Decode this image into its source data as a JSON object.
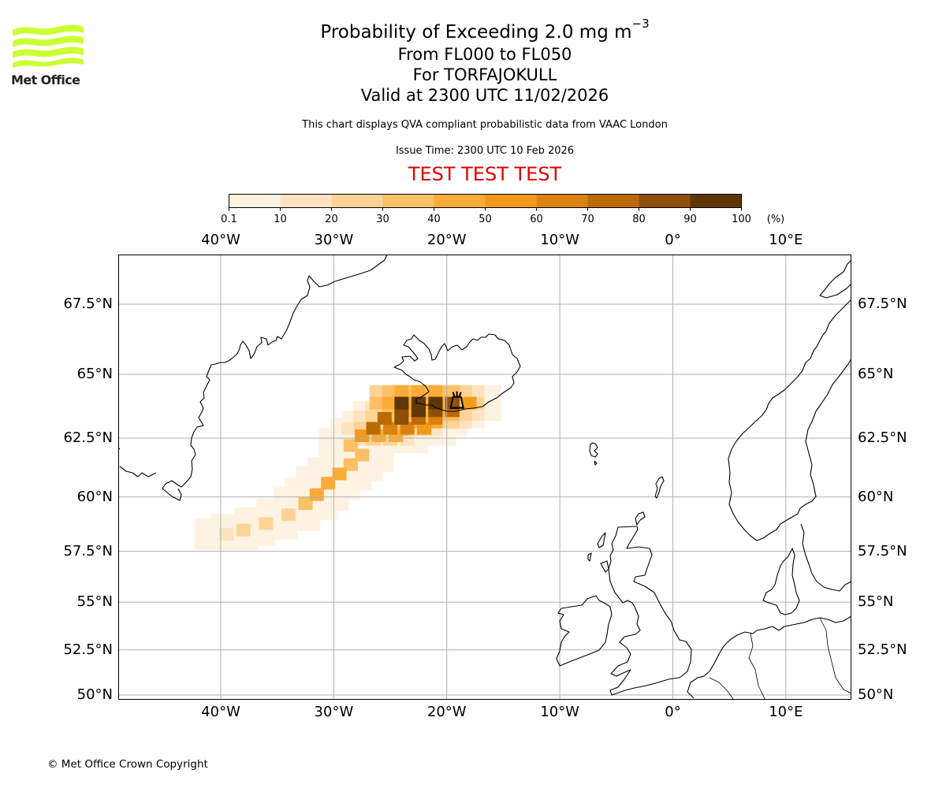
{
  "logo": {
    "name": "Met Office",
    "icon": "met-office-wave-logo-icon",
    "color": "#ccff33"
  },
  "title": {
    "main": "Probability of Exceeding 2.0 mg m",
    "main_exponent": "−3",
    "flight_levels": "From FL000 to FL050",
    "volcano": "For TORFAJOKULL",
    "valid": "Valid at 2300 UTC 11/02/2026",
    "note": "This chart displays QVA compliant probabilistic data from VAAC London",
    "issue_time": "Issue Time: 2300 UTC 10 Feb 2026",
    "test_banner": "TEST TEST TEST",
    "test_color": "#e00000"
  },
  "colorbar": {
    "unit": "(%)",
    "ticks": [
      "0.1",
      "10",
      "20",
      "30",
      "40",
      "50",
      "60",
      "70",
      "80",
      "90",
      "100"
    ],
    "colors": [
      "#fef3e2",
      "#fde3c0",
      "#fdd496",
      "#fcc066",
      "#fbab37",
      "#f19a1c",
      "#d98210",
      "#bb6b05",
      "#8f5005",
      "#613605"
    ]
  },
  "map": {
    "lon_range": [
      -49.07,
      15.8
    ],
    "lat_range": [
      49.8,
      69.3
    ],
    "lon_ticks": [
      "40°W",
      "30°W",
      "20°W",
      "10°W",
      "0°",
      "10°E"
    ],
    "lon_tick_values": [
      -40,
      -30,
      -20,
      -10,
      0,
      10
    ],
    "lat_ticks": [
      "67.5°N",
      "65°N",
      "62.5°N",
      "60°N",
      "57.5°N",
      "55°N",
      "52.5°N",
      "50°N"
    ],
    "lat_tick_values": [
      67.5,
      65,
      62.5,
      60,
      57.5,
      55,
      52.5,
      50
    ],
    "volcano_marker": {
      "name": "TORFAJOKULL",
      "lon": -19.1,
      "lat": 63.9,
      "icon": "volcano-icon"
    },
    "plume_bins": [
      {
        "lon": -24,
        "lat": 63.9,
        "p": 95
      },
      {
        "lon": -22.5,
        "lat": 63.9,
        "p": 95
      },
      {
        "lon": -21,
        "lat": 63.9,
        "p": 90
      },
      {
        "lon": -19.5,
        "lat": 63.9,
        "p": 85
      },
      {
        "lon": -22.5,
        "lat": 63.6,
        "p": 92
      },
      {
        "lon": -21,
        "lat": 63.6,
        "p": 88
      },
      {
        "lon": -24,
        "lat": 63.6,
        "p": 80
      },
      {
        "lon": -25.5,
        "lat": 63.3,
        "p": 70
      },
      {
        "lon": -24,
        "lat": 63.3,
        "p": 82
      },
      {
        "lon": -22.5,
        "lat": 63.3,
        "p": 75
      },
      {
        "lon": -21,
        "lat": 63.3,
        "p": 65
      },
      {
        "lon": -19.5,
        "lat": 63.6,
        "p": 70
      },
      {
        "lon": -18,
        "lat": 63.9,
        "p": 55
      },
      {
        "lon": -26.5,
        "lat": 62.9,
        "p": 72
      },
      {
        "lon": -25,
        "lat": 62.9,
        "p": 68
      },
      {
        "lon": -23.5,
        "lat": 62.9,
        "p": 60
      },
      {
        "lon": -22,
        "lat": 62.9,
        "p": 50
      },
      {
        "lon": -27.5,
        "lat": 62.6,
        "p": 55
      },
      {
        "lon": -26,
        "lat": 62.6,
        "p": 45
      },
      {
        "lon": -24.5,
        "lat": 62.6,
        "p": 40
      },
      {
        "lon": -28.5,
        "lat": 62.2,
        "p": 35
      },
      {
        "lon": -27.5,
        "lat": 61.8,
        "p": 30
      },
      {
        "lon": -28.5,
        "lat": 61.4,
        "p": 35
      },
      {
        "lon": -29.5,
        "lat": 61,
        "p": 40
      },
      {
        "lon": -30.5,
        "lat": 60.6,
        "p": 45
      },
      {
        "lon": -31.5,
        "lat": 60.1,
        "p": 42
      },
      {
        "lon": -32.5,
        "lat": 59.7,
        "p": 35
      },
      {
        "lon": -34,
        "lat": 59.2,
        "p": 25
      },
      {
        "lon": -36,
        "lat": 58.8,
        "p": 22
      },
      {
        "lon": -38,
        "lat": 58.5,
        "p": 20
      },
      {
        "lon": -39.5,
        "lat": 58.3,
        "p": 15
      }
    ],
    "grid_color": "#b0b0b0"
  },
  "footer": {
    "copyright": "© Met Office Crown Copyright"
  }
}
